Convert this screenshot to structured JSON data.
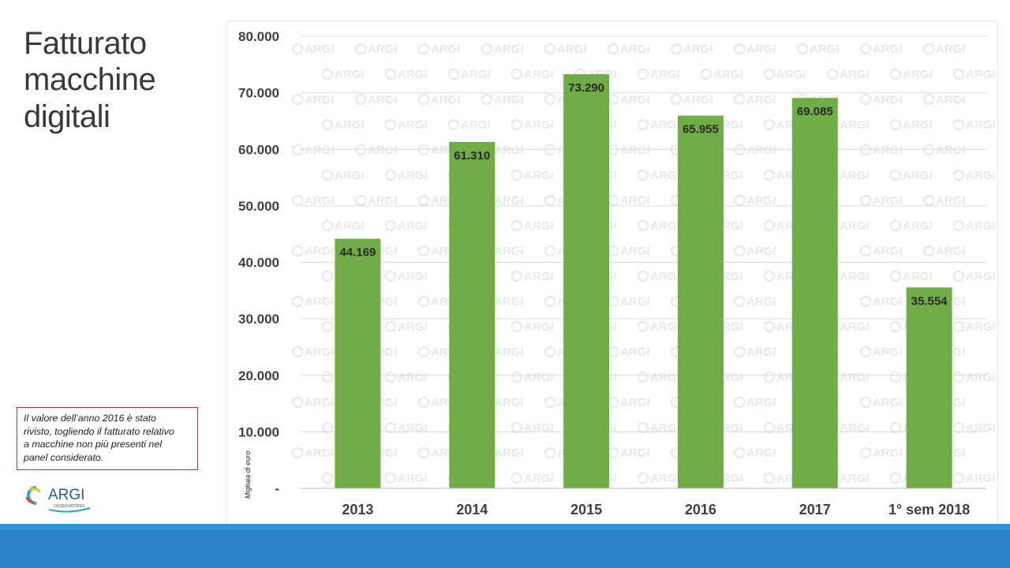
{
  "slide": {
    "title_lines": [
      "Fatturato",
      "macchine",
      "digitali"
    ],
    "note_lines": [
      "Il valore dell’anno 2016 è stato",
      "rivisto, togliendo il fatturato relativo",
      "a macchine non più presenti nel",
      "panel considerato."
    ],
    "logo": {
      "text": "ARGI",
      "subtext": "OSSERVATORIO"
    },
    "watermark_text": "ARGI"
  },
  "colors": {
    "bar": "#70ad47",
    "footer": "#2a84c7",
    "note_border": "#b83232",
    "grid": "#d9d9d9",
    "watermark": "#e8e8e8"
  },
  "chart_data": {
    "type": "bar",
    "categories": [
      "2013",
      "2014",
      "2015",
      "2016",
      "2017",
      "1° sem 2018"
    ],
    "values": [
      44169,
      61310,
      73290,
      65955,
      69085,
      35554
    ],
    "data_labels": [
      "44.169",
      "61.310",
      "73.290",
      "65.955",
      "69.085",
      "35.554"
    ],
    "y_ticks": [
      {
        "value": 0,
        "label": "-"
      },
      {
        "value": 10000,
        "label": "10.000"
      },
      {
        "value": 20000,
        "label": "20.000"
      },
      {
        "value": 30000,
        "label": "30.000"
      },
      {
        "value": 40000,
        "label": "40.000"
      },
      {
        "value": 50000,
        "label": "50.000"
      },
      {
        "value": 60000,
        "label": "60.000"
      },
      {
        "value": 70000,
        "label": "70.000"
      },
      {
        "value": 80000,
        "label": "80.000"
      }
    ],
    "ylim": [
      0,
      80000
    ],
    "ylabel": "Migliaia di euro",
    "xlabel": "",
    "title": "",
    "grid": true,
    "legend": "none"
  }
}
